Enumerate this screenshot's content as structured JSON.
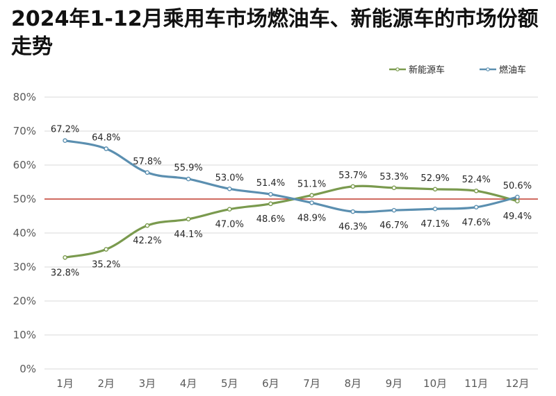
{
  "title": "2024年1-12月乘用车市场燃油车、新能源车的市场份额走势",
  "chart_data": {
    "type": "line",
    "title": "2024年1-12月乘用车市场燃油车、新能源车的市场份额走势",
    "xlabel": "",
    "ylabel": "",
    "categories": [
      "1月",
      "2月",
      "3月",
      "4月",
      "5月",
      "6月",
      "7月",
      "8月",
      "9月",
      "10月",
      "11月",
      "12月"
    ],
    "ylim": [
      0,
      80
    ],
    "yticks": [
      0,
      10,
      20,
      30,
      40,
      50,
      60,
      70,
      80
    ],
    "ytick_labels": [
      "0%",
      "10%",
      "20%",
      "30%",
      "40%",
      "50%",
      "60%",
      "70%",
      "80%"
    ],
    "grid": true,
    "reference_line": {
      "value": 50,
      "color": "#c0392b"
    },
    "legend_position": "top-right",
    "series": [
      {
        "name": "新能源车",
        "color": "#7a9a4e",
        "values": [
          32.8,
          35.2,
          42.2,
          44.1,
          47.0,
          48.6,
          51.1,
          53.7,
          53.3,
          52.9,
          52.4,
          49.4
        ],
        "labels": [
          "32.8%",
          "35.2%",
          "42.2%",
          "44.1%",
          "47.0%",
          "48.6%",
          "51.1%",
          "53.7%",
          "53.3%",
          "52.9%",
          "52.4%",
          "49.4%"
        ]
      },
      {
        "name": "燃油车",
        "color": "#5b8fb0",
        "values": [
          67.2,
          64.8,
          57.8,
          55.9,
          53.0,
          51.4,
          48.9,
          46.3,
          46.7,
          47.1,
          47.6,
          50.6
        ],
        "labels": [
          "67.2%",
          "64.8%",
          "57.8%",
          "55.9%",
          "53.0%",
          "51.4%",
          "48.9%",
          "46.3%",
          "46.7%",
          "47.1%",
          "47.6%",
          "50.6%"
        ]
      }
    ]
  }
}
